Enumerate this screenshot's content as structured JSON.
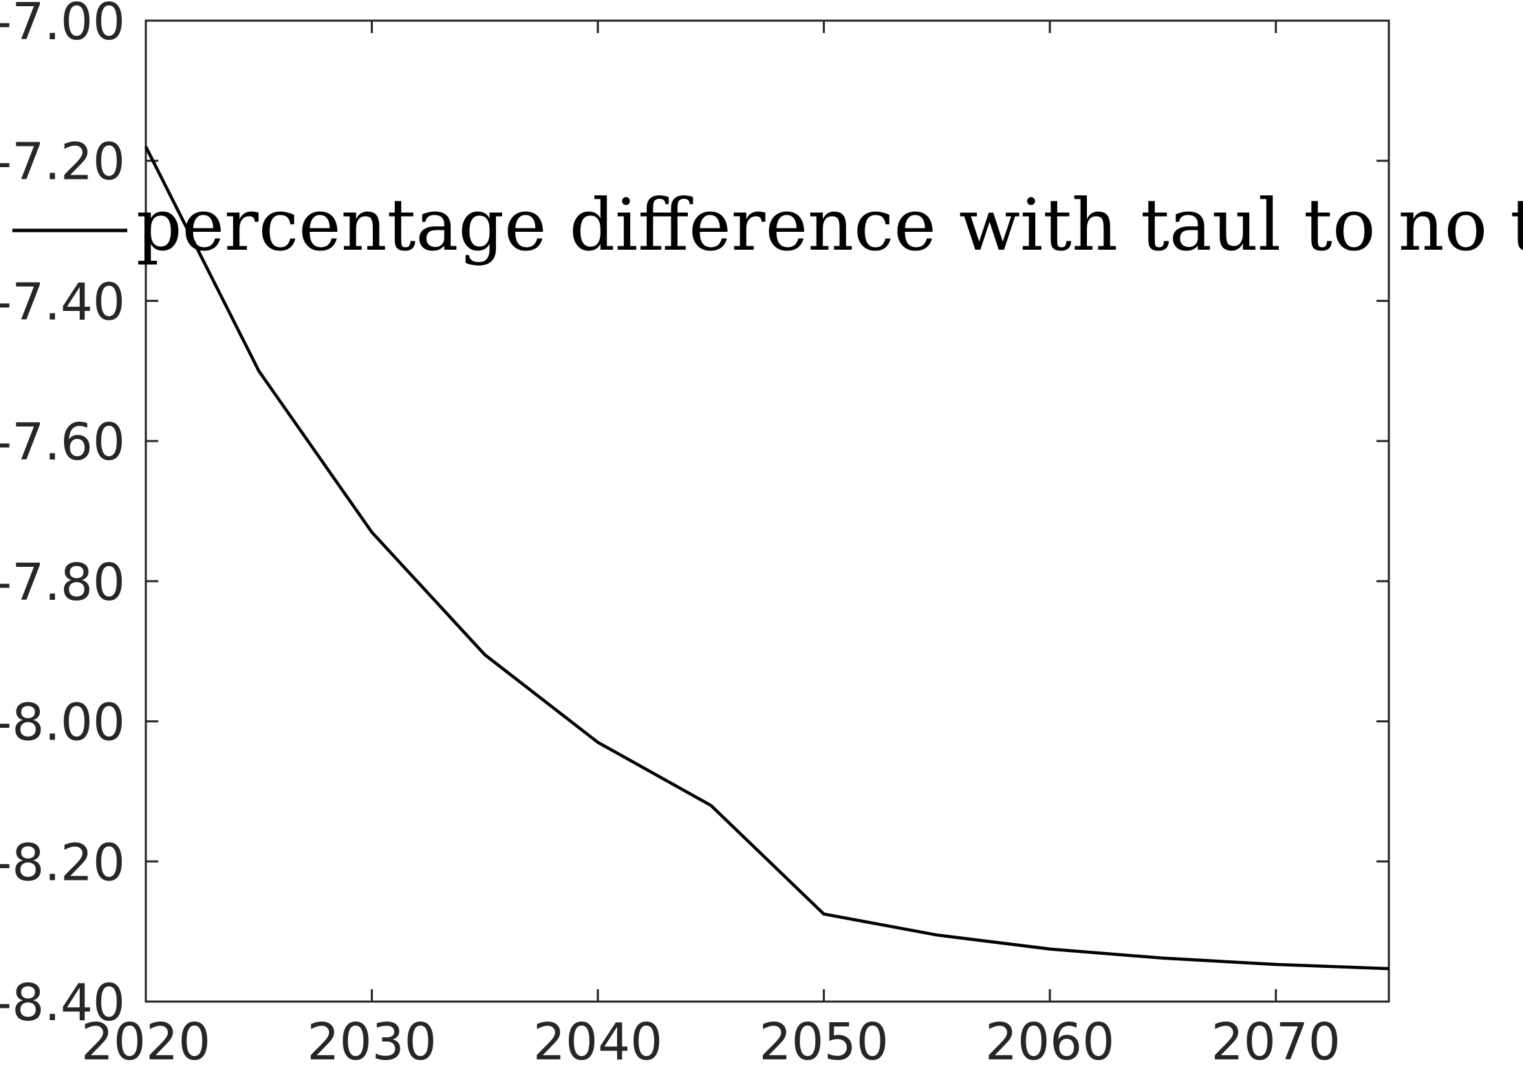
{
  "chart_data": {
    "type": "line",
    "title": "",
    "xlabel": "",
    "ylabel": "",
    "xlim": [
      2020,
      2075
    ],
    "ylim": [
      -8.4,
      -7.0
    ],
    "x_ticks": [
      2020,
      2030,
      2040,
      2050,
      2060,
      2070
    ],
    "x_tick_labels": [
      "2020",
      "2030",
      "2040",
      "2050",
      "2060",
      "2070"
    ],
    "y_ticks": [
      -7.0,
      -7.2,
      -7.4,
      -7.6,
      -7.8,
      -8.0,
      -8.2,
      -8.4
    ],
    "y_tick_labels": [
      "-7.00",
      "-7.20",
      "-7.40",
      "-7.60",
      "-7.80",
      "-8.00",
      "-8.20",
      "-8.40"
    ],
    "grid": false,
    "legend_position": "top-center",
    "series": [
      {
        "name": "percentage difference with taul to no taul",
        "color": "#000000",
        "x": [
          2020,
          2025,
          2030,
          2035,
          2040,
          2045,
          2050,
          2055,
          2060,
          2065,
          2070,
          2075
        ],
        "y": [
          -7.18,
          -7.5,
          -7.73,
          -7.905,
          -8.03,
          -8.12,
          -8.275,
          -8.305,
          -8.325,
          -8.338,
          -8.347,
          -8.353
        ]
      }
    ]
  }
}
